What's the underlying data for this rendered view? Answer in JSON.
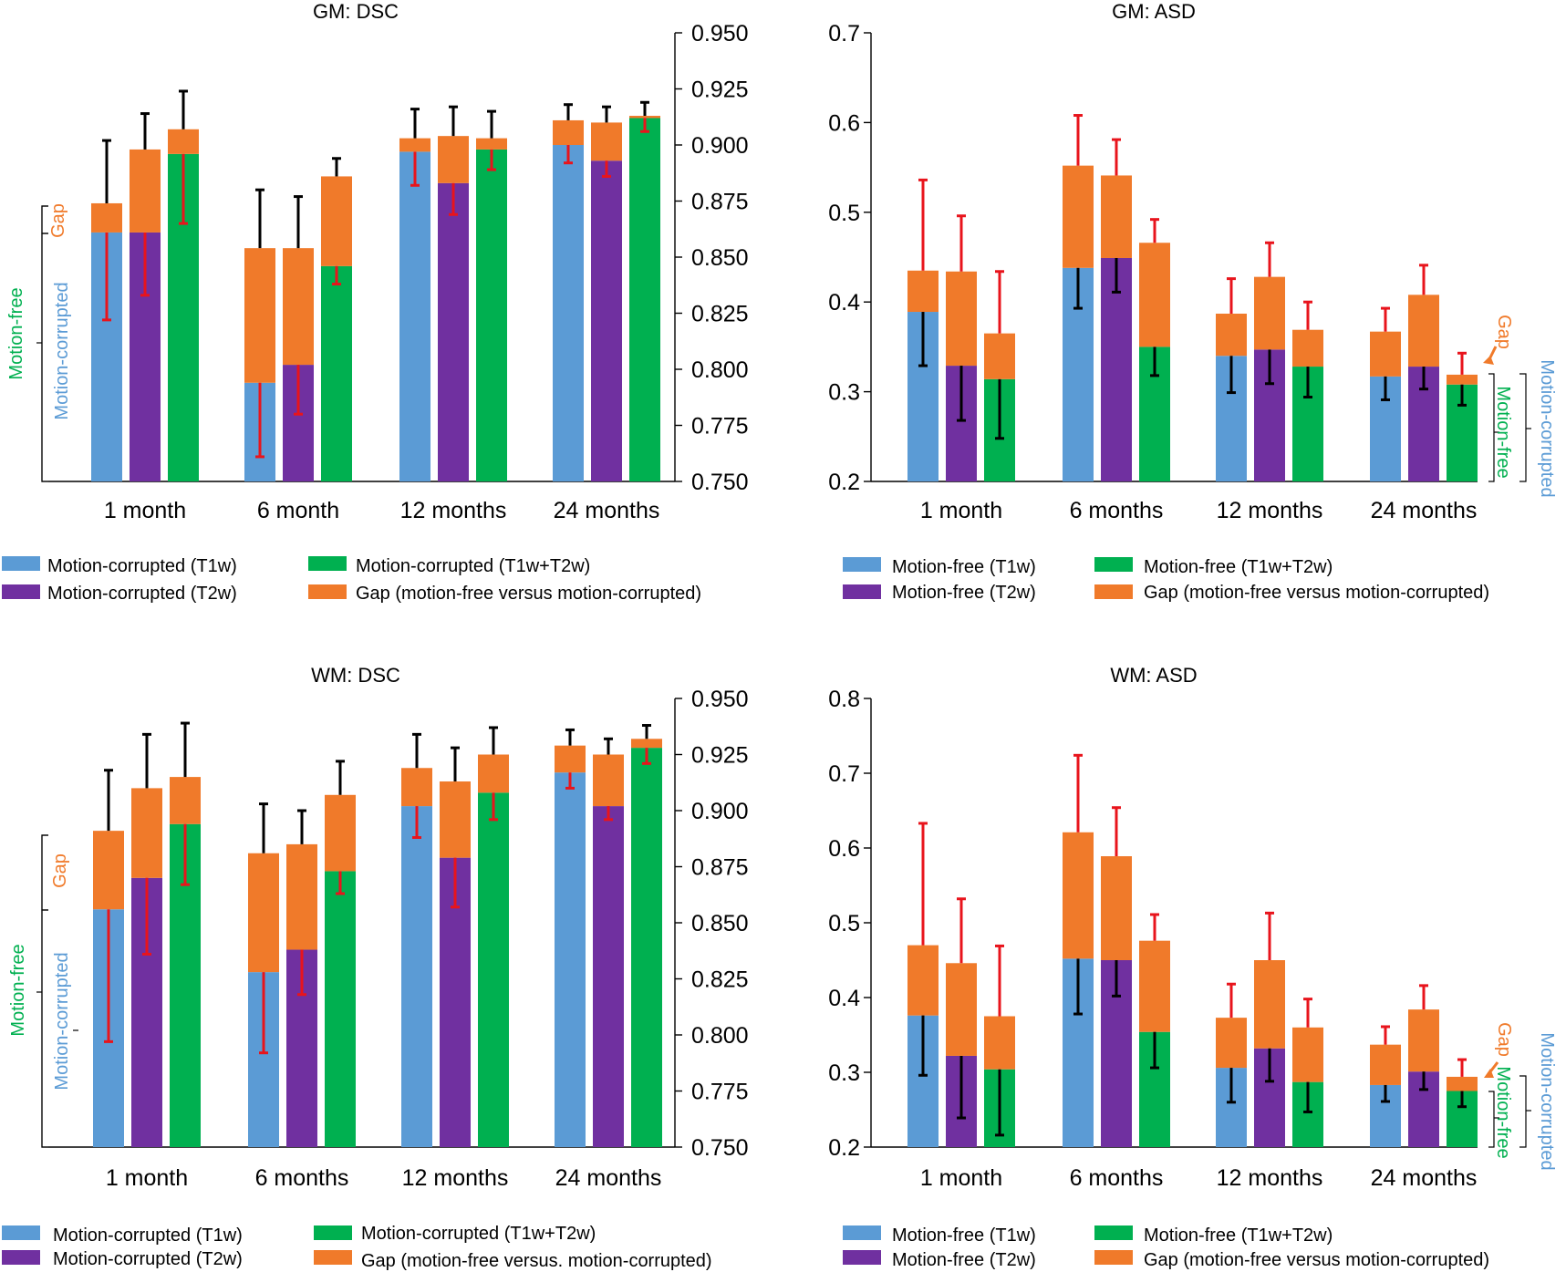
{
  "colors": {
    "t1w": "#5b9bd5",
    "t2w": "#7030a0",
    "combo": "#00b050",
    "gap": "#f07a2a",
    "err_black": "#000000",
    "err_red": "#e8141c",
    "axis": "#000000"
  },
  "panels": {
    "gm_dsc": {
      "title": "GM: DSC",
      "side_gap": "Gap",
      "side_free": "Motion-free",
      "side_corr": "Motion-corrupted",
      "legend": [
        "Motion-corrupted (T1w)",
        "Motion-corrupted (T2w)",
        "Motion-corrupted (T1w+T2w)",
        "Gap (motion-free versus motion-corrupted)"
      ]
    },
    "gm_asd": {
      "title": "GM: ASD",
      "side_gap": "Gap",
      "side_free": "Motion-free",
      "side_corr": "Motion-corrupted",
      "legend": [
        "Motion-free (T1w)",
        "Motion-free (T2w)",
        "Motion-free (T1w+T2w)",
        "Gap (motion-free versus motion-corrupted)"
      ]
    },
    "wm_dsc": {
      "title": "WM: DSC",
      "side_gap": "Gap",
      "side_free": "Motion-free",
      "side_corr": "Motion-corrupted",
      "legend": [
        "Motion-corrupted (T1w)",
        "Motion-corrupted (T2w)",
        "Motion-corrupted (T1w+T2w)",
        "Gap (motion-free versus. motion-corrupted)"
      ]
    },
    "wm_asd": {
      "title": "WM: ASD",
      "side_gap": "Gap",
      "side_free": "Motion-free",
      "side_corr": "Motion-corrupted",
      "legend": [
        "Motion-free (T1w)",
        "Motion-free (T2w)",
        "Motion-free (T1w+T2w)",
        "Gap (motion-free versus motion-corrupted)"
      ]
    }
  },
  "chart_data": [
    {
      "id": "gm_dsc",
      "type": "bar",
      "title": "GM: DSC",
      "categories": [
        "1 month",
        "6 month",
        "12 months",
        "24 months"
      ],
      "y_axis": "right",
      "ylim": [
        0.75,
        0.95
      ],
      "yticks": [
        "0.950",
        "0.925",
        "0.900",
        "0.875",
        "0.850",
        "0.825",
        "0.800",
        "0.775",
        "0.750"
      ],
      "series": [
        {
          "name": "Motion-corrupted (T1w)",
          "values": [
            0.861,
            0.794,
            0.897,
            0.9
          ],
          "err_low": [
            0.822,
            0.761,
            0.882,
            0.892
          ],
          "gap_top": [
            0.874,
            0.854,
            0.903,
            0.911
          ],
          "err_high": [
            0.902,
            0.88,
            0.916,
            0.918
          ]
        },
        {
          "name": "Motion-corrupted (T2w)",
          "values": [
            0.861,
            0.802,
            0.883,
            0.893
          ],
          "err_low": [
            0.833,
            0.78,
            0.869,
            0.886
          ],
          "gap_top": [
            0.898,
            0.854,
            0.904,
            0.91
          ],
          "err_high": [
            0.914,
            0.877,
            0.917,
            0.917
          ]
        },
        {
          "name": "Motion-corrupted (T1w+T2w)",
          "values": [
            0.896,
            0.846,
            0.898,
            0.912
          ],
          "err_low": [
            0.865,
            0.838,
            0.889,
            0.906
          ],
          "gap_top": [
            0.907,
            0.886,
            0.903,
            0.913
          ],
          "err_high": [
            0.924,
            0.894,
            0.915,
            0.919
          ]
        }
      ]
    },
    {
      "id": "gm_asd",
      "type": "bar",
      "title": "GM: ASD",
      "categories": [
        "1 month",
        "6 months",
        "12 months",
        "24 months"
      ],
      "y_axis": "left",
      "ylim": [
        0.2,
        0.7
      ],
      "yticks": [
        "0.7",
        "0.6",
        "0.5",
        "0.4",
        "0.3",
        "0.2"
      ],
      "series": [
        {
          "name": "Motion-free (T1w)",
          "values": [
            0.389,
            0.438,
            0.34,
            0.317
          ],
          "err_low": [
            0.329,
            0.393,
            0.299,
            0.291
          ],
          "gap_top": [
            0.435,
            0.552,
            0.387,
            0.367
          ],
          "err_high": [
            0.536,
            0.608,
            0.426,
            0.393
          ]
        },
        {
          "name": "Motion-free (T2w)",
          "values": [
            0.329,
            0.449,
            0.347,
            0.328
          ],
          "err_low": [
            0.268,
            0.411,
            0.309,
            0.303
          ],
          "gap_top": [
            0.434,
            0.541,
            0.428,
            0.408
          ],
          "err_high": [
            0.496,
            0.581,
            0.466,
            0.441
          ]
        },
        {
          "name": "Motion-free (T1w+T2w)",
          "values": [
            0.314,
            0.35,
            0.328,
            0.308
          ],
          "err_low": [
            0.248,
            0.318,
            0.294,
            0.285
          ],
          "gap_top": [
            0.365,
            0.466,
            0.369,
            0.319
          ],
          "err_high": [
            0.434,
            0.492,
            0.4,
            0.343
          ]
        }
      ]
    },
    {
      "id": "wm_dsc",
      "type": "bar",
      "title": "WM: DSC",
      "categories": [
        "1 month",
        "6 months",
        "12 months",
        "24 months"
      ],
      "y_axis": "right",
      "ylim": [
        0.75,
        0.95
      ],
      "yticks": [
        "0.950",
        "0.925",
        "0.900",
        "0.875",
        "0.850",
        "0.825",
        "0.800",
        "0.775",
        "0.750"
      ],
      "series": [
        {
          "name": "Motion-corrupted (T1w)",
          "values": [
            0.856,
            0.828,
            0.902,
            0.917
          ],
          "err_low": [
            0.797,
            0.792,
            0.888,
            0.91
          ],
          "gap_top": [
            0.891,
            0.881,
            0.919,
            0.929
          ],
          "err_high": [
            0.918,
            0.903,
            0.934,
            0.936
          ]
        },
        {
          "name": "Motion-corrupted (T2w)",
          "values": [
            0.87,
            0.838,
            0.879,
            0.902
          ],
          "err_low": [
            0.836,
            0.818,
            0.857,
            0.896
          ],
          "gap_top": [
            0.91,
            0.885,
            0.913,
            0.925
          ],
          "err_high": [
            0.934,
            0.9,
            0.928,
            0.932
          ]
        },
        {
          "name": "Motion-corrupted (T1w+T2w)",
          "values": [
            0.894,
            0.873,
            0.908,
            0.928
          ],
          "err_low": [
            0.867,
            0.863,
            0.896,
            0.921
          ],
          "gap_top": [
            0.915,
            0.907,
            0.925,
            0.932
          ],
          "err_high": [
            0.939,
            0.922,
            0.937,
            0.938
          ]
        }
      ]
    },
    {
      "id": "wm_asd",
      "type": "bar",
      "title": "WM: ASD",
      "categories": [
        "1 month",
        "6 months",
        "12 months",
        "24 months"
      ],
      "y_axis": "left",
      "ylim": [
        0.2,
        0.8
      ],
      "yticks": [
        "0.8",
        "0.7",
        "0.6",
        "0.5",
        "0.4",
        "0.3",
        "0.2"
      ],
      "series": [
        {
          "name": "Motion-free (T1w)",
          "values": [
            0.376,
            0.452,
            0.306,
            0.283
          ],
          "err_low": [
            0.296,
            0.378,
            0.26,
            0.261
          ],
          "gap_top": [
            0.47,
            0.621,
            0.373,
            0.337
          ],
          "err_high": [
            0.633,
            0.724,
            0.418,
            0.361
          ]
        },
        {
          "name": "Motion-free (T2w)",
          "values": [
            0.322,
            0.45,
            0.332,
            0.301
          ],
          "err_low": [
            0.239,
            0.402,
            0.288,
            0.277
          ],
          "gap_top": [
            0.446,
            0.589,
            0.45,
            0.384
          ],
          "err_high": [
            0.532,
            0.654,
            0.513,
            0.416
          ]
        },
        {
          "name": "Motion-free (T1w+T2w)",
          "values": [
            0.304,
            0.354,
            0.287,
            0.275
          ],
          "err_low": [
            0.216,
            0.306,
            0.247,
            0.254
          ],
          "gap_top": [
            0.375,
            0.476,
            0.36,
            0.294
          ],
          "err_high": [
            0.469,
            0.511,
            0.398,
            0.317
          ]
        }
      ]
    }
  ]
}
